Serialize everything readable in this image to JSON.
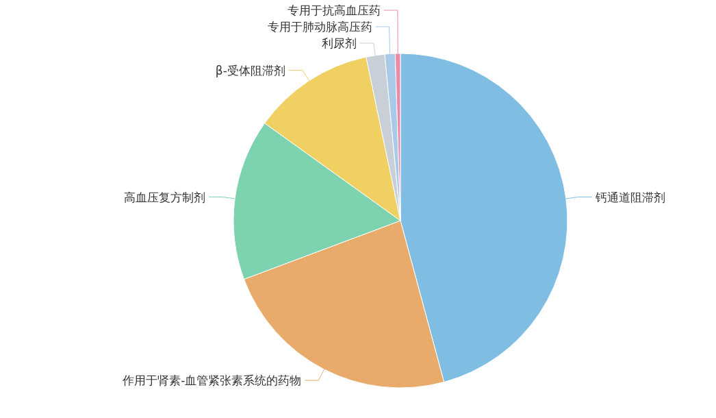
{
  "chart_data": {
    "type": "pie",
    "categories": [
      "钙通道阻滞剂",
      "作用于肾素-血管紧张素系统的药物",
      "高血压复方制剂",
      "β-受体阻滞剂",
      "利尿剂",
      "专用于肺动脉高压药",
      "专用于抗高血压药"
    ],
    "values": [
      45.8,
      23.5,
      15.6,
      11.8,
      1.8,
      1.0,
      0.5
    ],
    "colors": [
      "#7fbde3",
      "#e8ab6b",
      "#7dd3b0",
      "#f0cf63",
      "#c9cfd6",
      "#a9c9e8",
      "#e88aa8"
    ]
  }
}
